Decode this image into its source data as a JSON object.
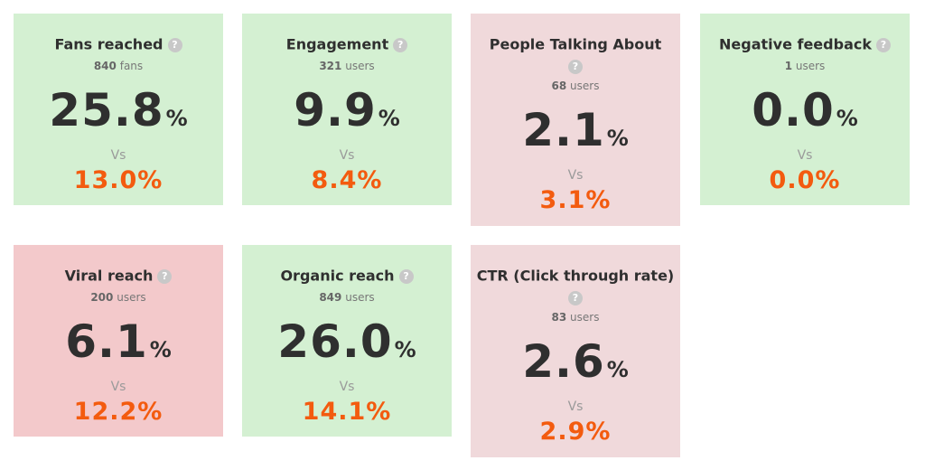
{
  "cards": [
    {
      "title": "Fans reached",
      "count": "840",
      "unit": "fans",
      "value": "25.8",
      "pct": "%",
      "vs": "Vs",
      "compare": "13.0%",
      "help_icon": "?"
    },
    {
      "title": "Engagement",
      "count": "321",
      "unit": "users",
      "value": "9.9",
      "pct": "%",
      "vs": "Vs",
      "compare": "8.4%",
      "help_icon": "?"
    },
    {
      "title": "People Talking About",
      "count": "68",
      "unit": "users",
      "value": "2.1",
      "pct": "%",
      "vs": "Vs",
      "compare": "3.1%",
      "help_icon": "?"
    },
    {
      "title": "Negative feedback",
      "count": "1",
      "unit": "users",
      "value": "0.0",
      "pct": "%",
      "vs": "Vs",
      "compare": "0.0%",
      "help_icon": "?"
    },
    {
      "title": "Viral reach",
      "count": "200",
      "unit": "users",
      "value": "6.1",
      "pct": "%",
      "vs": "Vs",
      "compare": "12.2%",
      "help_icon": "?"
    },
    {
      "title": "Organic reach",
      "count": "849",
      "unit": "users",
      "value": "26.0",
      "pct": "%",
      "vs": "Vs",
      "compare": "14.1%",
      "help_icon": "?"
    },
    {
      "title": "CTR (Click through rate)",
      "count": "83",
      "unit": "users",
      "value": "2.6",
      "pct": "%",
      "vs": "Vs",
      "compare": "2.9%",
      "help_icon": "?"
    }
  ],
  "colors": {
    "good_bg": "#d4f0d2",
    "neutral_bg": "#f0d9db",
    "bad_bg": "#f3c9cb",
    "compare_text": "#f35b0f",
    "help_icon_bg": "#c8c8c8"
  }
}
